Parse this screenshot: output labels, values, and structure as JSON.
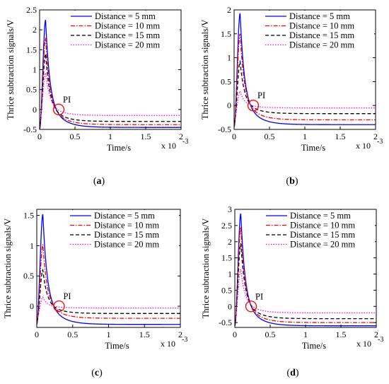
{
  "chart_data": [
    {
      "type": "line",
      "panel_label": "(a)",
      "bold_letter": "a",
      "xlabel": "Time/s",
      "ylabel": "Thrice subtraction signals/V",
      "x_exponent_base": "x 10",
      "x_exponent_power": "-3",
      "xlim": [
        0,
        2
      ],
      "ylim": [
        -0.5,
        2.5
      ],
      "xticks": [
        "0",
        "0.5",
        "1",
        "1.5",
        "2"
      ],
      "yticks": [
        {
          "value": -0.5,
          "label": "-0.5"
        },
        {
          "value": 0,
          "label": "0"
        },
        {
          "value": 0.5,
          "label": "0.5"
        },
        {
          "value": 1,
          "label": "1"
        },
        {
          "value": 1.5,
          "label": "1.5"
        },
        {
          "value": 2,
          "label": "2"
        },
        {
          "value": 2.5,
          "label": "2.5"
        }
      ],
      "pi": {
        "label": "PI",
        "x": 0.27,
        "y": 0.0
      },
      "series": [
        {
          "name": "Distance = 5 mm",
          "color": "#0000ff",
          "style": "solid",
          "start": -0.5,
          "peak": 2.25,
          "end": -0.45
        },
        {
          "name": "Distance = 10 mm",
          "color": "#ff0000",
          "style": "dashdot",
          "start": -0.45,
          "peak": 1.8,
          "end": -0.38
        },
        {
          "name": "Distance = 15 mm",
          "color": "#000000",
          "style": "dashed",
          "start": -0.4,
          "peak": 1.4,
          "end": -0.3
        },
        {
          "name": "Distance = 20 mm",
          "color": "#ff00ff",
          "style": "dotted",
          "start": -0.3,
          "peak": 0.92,
          "end": -0.15
        }
      ]
    },
    {
      "type": "line",
      "panel_label": "(b)",
      "bold_letter": "b",
      "xlabel": "Time/s",
      "ylabel": "Thrice subtraction signals/V",
      "x_exponent_base": "x 10",
      "x_exponent_power": "-3",
      "xlim": [
        0,
        2
      ],
      "ylim": [
        -0.5,
        2
      ],
      "xticks": [
        "0",
        "0.5",
        "1",
        "1.5",
        "2"
      ],
      "yticks": [
        {
          "value": -0.5,
          "label": "-0.5"
        },
        {
          "value": 0,
          "label": "0"
        },
        {
          "value": 0.5,
          "label": "0.5"
        },
        {
          "value": 1,
          "label": "1"
        },
        {
          "value": 1.5,
          "label": "1.5"
        },
        {
          "value": 2,
          "label": "2"
        }
      ],
      "pi": {
        "label": "PI",
        "x": 0.27,
        "y": 0.0
      },
      "series": [
        {
          "name": "Distance = 5 mm",
          "color": "#0000ff",
          "style": "solid",
          "start": -0.45,
          "peak": 1.93,
          "end": -0.4
        },
        {
          "name": "Distance = 10 mm",
          "color": "#ff0000",
          "style": "dashdot",
          "start": -0.42,
          "peak": 1.5,
          "end": -0.3
        },
        {
          "name": "Distance = 15 mm",
          "color": "#000000",
          "style": "dashed",
          "start": -0.38,
          "peak": 0.92,
          "end": -0.17
        },
        {
          "name": "Distance = 20 mm",
          "color": "#ff00ff",
          "style": "dotted",
          "start": -0.3,
          "peak": 0.3,
          "end": -0.05
        }
      ]
    },
    {
      "type": "line",
      "panel_label": "(c)",
      "bold_letter": "c",
      "xlabel": "Time/s",
      "ylabel": "Thrice subtraction signals/V",
      "x_exponent_base": "x 10",
      "x_exponent_power": "-3",
      "xlim": [
        0,
        2
      ],
      "ylim": [
        -0.35,
        1.6
      ],
      "xticks": [
        "0",
        "0.5",
        "1",
        "1.5",
        "2"
      ],
      "yticks": [
        {
          "value": 0,
          "label": "0"
        },
        {
          "value": 0.5,
          "label": "0.5"
        },
        {
          "value": 1,
          "label": "1"
        },
        {
          "value": 1.5,
          "label": "1.5"
        }
      ],
      "pi": {
        "label": "PI",
        "x": 0.31,
        "y": 0.0
      },
      "series": [
        {
          "name": "Distance = 5 mm",
          "color": "#0000ff",
          "style": "solid",
          "start": -0.3,
          "peak": 1.52,
          "end": -0.3
        },
        {
          "name": "Distance = 10 mm",
          "color": "#ff0000",
          "style": "dashdot",
          "start": -0.28,
          "peak": 1.02,
          "end": -0.2
        },
        {
          "name": "Distance = 15 mm",
          "color": "#000000",
          "style": "dashed",
          "start": -0.25,
          "peak": 0.6,
          "end": -0.12
        },
        {
          "name": "Distance = 20 mm",
          "color": "#ff00ff",
          "style": "dotted",
          "start": -0.2,
          "peak": 0.15,
          "end": -0.03
        }
      ]
    },
    {
      "type": "line",
      "panel_label": "(d)",
      "bold_letter": "d",
      "xlabel": "Time/s",
      "ylabel": "Thrice subtraction signals/V",
      "x_exponent_base": "x 10",
      "x_exponent_power": "-3",
      "xlim": [
        0,
        2
      ],
      "ylim": [
        -0.65,
        3
      ],
      "xticks": [
        "0",
        "0.5",
        "1",
        "1.5",
        "2"
      ],
      "yticks": [
        {
          "value": -0.5,
          "label": "-0.5"
        },
        {
          "value": 0,
          "label": "0"
        },
        {
          "value": 0.5,
          "label": "0.5"
        },
        {
          "value": 1,
          "label": "1"
        },
        {
          "value": 1.5,
          "label": "1.5"
        },
        {
          "value": 2,
          "label": "2"
        },
        {
          "value": 2.5,
          "label": "2.5"
        },
        {
          "value": 3,
          "label": "3"
        }
      ],
      "pi": {
        "label": "PI",
        "x": 0.23,
        "y": 0.0
      },
      "series": [
        {
          "name": "Distance = 5 mm",
          "color": "#0000ff",
          "style": "solid",
          "start": -0.6,
          "peak": 2.87,
          "end": -0.6
        },
        {
          "name": "Distance = 10 mm",
          "color": "#ff0000",
          "style": "dashdot",
          "start": -0.55,
          "peak": 2.45,
          "end": -0.5
        },
        {
          "name": "Distance = 15 mm",
          "color": "#000000",
          "style": "dashed",
          "start": -0.5,
          "peak": 1.95,
          "end": -0.38
        },
        {
          "name": "Distance = 20 mm",
          "color": "#ff00ff",
          "style": "dotted",
          "start": -0.4,
          "peak": 1.15,
          "end": -0.2
        }
      ]
    }
  ]
}
